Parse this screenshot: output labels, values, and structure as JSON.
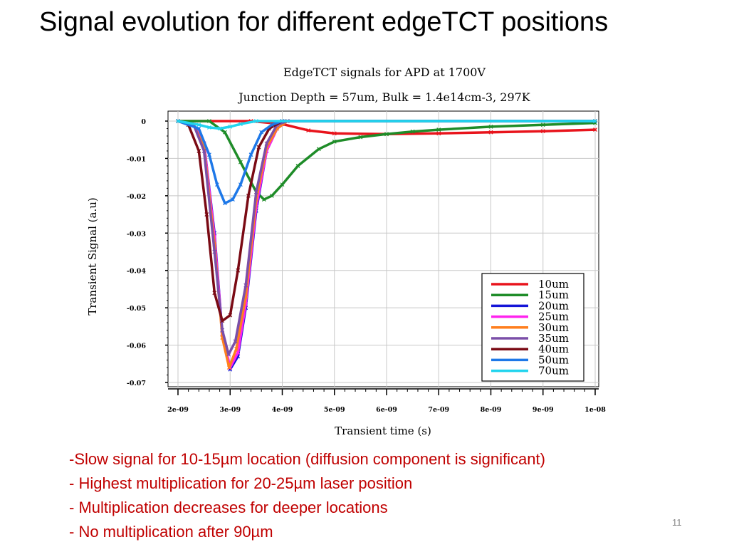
{
  "slide": {
    "title": "Signal evolution for different edgeTCT positions",
    "bullets": [
      "-Slow signal for 10-15µm location (diffusion component is significant)",
      "- Highest multiplication for 20-25µm laser position",
      "- Multiplication decreases for deeper locations",
      "- No multiplication after 90µm"
    ],
    "page_number": "11"
  },
  "chart_data": {
    "type": "line",
    "title": "EdgeTCT signals for APD at 1700V",
    "subtitle": "Junction Depth = 57um, Bulk = 1.4e14cm-3, 297K",
    "xlabel": "Transient time (s)",
    "ylabel": "Transient Signal (a.u)",
    "xlim": [
      1.8e-09,
      1e-08
    ],
    "ylim": [
      -0.07,
      0.0005
    ],
    "xticks": [
      2e-09,
      3e-09,
      4e-09,
      5e-09,
      6e-09,
      7e-09,
      8e-09,
      9e-09,
      1e-08
    ],
    "xtick_labels": [
      "2e-09",
      "3e-09",
      "4e-09",
      "5e-09",
      "6e-09",
      "7e-09",
      "8e-09",
      "9e-09",
      "1e-08"
    ],
    "yticks": [
      0,
      -0.01,
      -0.02,
      -0.03,
      -0.04,
      -0.05,
      -0.06,
      -0.07
    ],
    "ytick_labels": [
      "0",
      "-0.01",
      "-0.02",
      "-0.03",
      "-0.04",
      "-0.05",
      "-0.06",
      "-0.07"
    ],
    "grid": true,
    "legend_position": "bottom-right",
    "series": [
      {
        "name": "10um",
        "color": "#e8141c",
        "x": [
          2e-09,
          3.4e-09,
          4e-09,
          4.5e-09,
          5e-09,
          6e-09,
          7e-09,
          8e-09,
          9e-09,
          1e-08
        ],
        "y": [
          0,
          0,
          -0.0008,
          -0.0025,
          -0.0033,
          -0.0035,
          -0.0033,
          -0.003,
          -0.0027,
          -0.0023
        ]
      },
      {
        "name": "15um",
        "color": "#1e8c28",
        "x": [
          2e-09,
          2.6e-09,
          2.9e-09,
          3.2e-09,
          3.5e-09,
          3.65e-09,
          3.8e-09,
          4e-09,
          4.3e-09,
          4.7e-09,
          5e-09,
          5.5e-09,
          6e-09,
          6.5e-09,
          7e-09,
          8e-09,
          9e-09,
          1e-08
        ],
        "y": [
          0,
          0,
          -0.003,
          -0.011,
          -0.019,
          -0.021,
          -0.02,
          -0.017,
          -0.012,
          -0.0075,
          -0.0055,
          -0.0043,
          -0.0035,
          -0.0028,
          -0.0023,
          -0.0015,
          -0.001,
          -0.0005
        ]
      },
      {
        "name": "20um",
        "color": "#1414d8",
        "x": [
          2e-09,
          2.3e-09,
          2.5e-09,
          2.7e-09,
          2.85e-09,
          3e-09,
          3.15e-09,
          3.3e-09,
          3.5e-09,
          3.7e-09,
          3.9e-09,
          4.1e-09,
          1e-08
        ],
        "y": [
          0,
          -0.001,
          -0.006,
          -0.03,
          -0.057,
          -0.0665,
          -0.063,
          -0.05,
          -0.024,
          -0.008,
          -0.002,
          0,
          0
        ]
      },
      {
        "name": "25um",
        "color": "#ff22ee",
        "x": [
          2e-09,
          2.3e-09,
          2.5e-09,
          2.7e-09,
          2.85e-09,
          3e-09,
          3.15e-09,
          3.3e-09,
          3.5e-09,
          3.7e-09,
          3.9e-09,
          4.1e-09,
          1e-08
        ],
        "y": [
          0,
          -0.001,
          -0.006,
          -0.031,
          -0.057,
          -0.066,
          -0.062,
          -0.049,
          -0.023,
          -0.008,
          -0.002,
          0,
          0
        ]
      },
      {
        "name": "30um",
        "color": "#ff7f1e",
        "x": [
          2e-09,
          2.3e-09,
          2.5e-09,
          2.7e-09,
          2.85e-09,
          2.98e-09,
          3.12e-09,
          3.3e-09,
          3.5e-09,
          3.7e-09,
          3.9e-09,
          4.1e-09,
          1e-08
        ],
        "y": [
          0,
          -0.001,
          -0.007,
          -0.033,
          -0.058,
          -0.066,
          -0.061,
          -0.047,
          -0.021,
          -0.007,
          -0.002,
          0,
          0
        ]
      },
      {
        "name": "35um",
        "color": "#7b4fa8",
        "x": [
          2e-09,
          2.3e-09,
          2.5e-09,
          2.7e-09,
          2.85e-09,
          2.97e-09,
          3.1e-09,
          3.3e-09,
          3.5e-09,
          3.7e-09,
          3.9e-09,
          4.1e-09,
          1e-08
        ],
        "y": [
          0,
          -0.001,
          -0.008,
          -0.035,
          -0.056,
          -0.0625,
          -0.059,
          -0.044,
          -0.019,
          -0.006,
          -0.001,
          0,
          0
        ]
      },
      {
        "name": "40um",
        "color": "#7a0a14",
        "x": [
          2e-09,
          2.2e-09,
          2.4e-09,
          2.55e-09,
          2.7e-09,
          2.85e-09,
          3e-09,
          3.15e-09,
          3.35e-09,
          3.55e-09,
          3.75e-09,
          4e-09,
          1e-08
        ],
        "y": [
          0,
          -0.001,
          -0.008,
          -0.025,
          -0.046,
          -0.0535,
          -0.052,
          -0.04,
          -0.02,
          -0.007,
          -0.002,
          0,
          0
        ]
      },
      {
        "name": "50um",
        "color": "#1e78e8",
        "x": [
          2e-09,
          2.4e-09,
          2.6e-09,
          2.75e-09,
          2.9e-09,
          3.05e-09,
          3.2e-09,
          3.4e-09,
          3.6e-09,
          3.8e-09,
          4e-09,
          1e-08
        ],
        "y": [
          0,
          -0.002,
          -0.009,
          -0.017,
          -0.022,
          -0.021,
          -0.017,
          -0.009,
          -0.003,
          -0.001,
          0,
          0
        ]
      },
      {
        "name": "70um",
        "color": "#22d4ee",
        "x": [
          2e-09,
          2.4e-09,
          2.6e-09,
          2.8e-09,
          3e-09,
          3.2e-09,
          3.5e-09,
          1e-08
        ],
        "y": [
          0,
          -0.001,
          -0.0017,
          -0.002,
          -0.0015,
          -0.0008,
          0,
          0
        ]
      }
    ]
  }
}
